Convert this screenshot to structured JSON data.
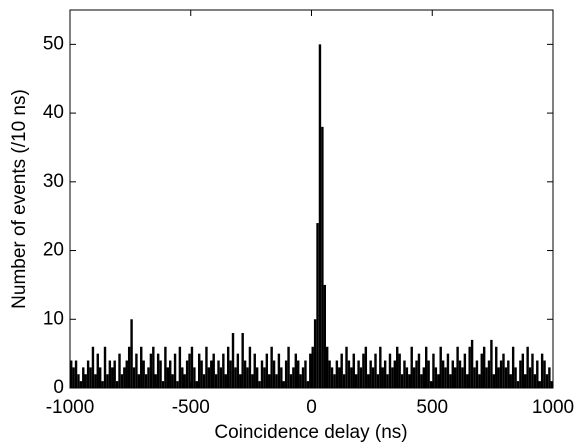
{
  "chart_data": {
    "type": "histogram",
    "xlabel": "Coincidence delay (ns)",
    "ylabel": "Number of events (/10 ns)",
    "bins": [
      -1000,
      -990,
      -980,
      -970,
      -960,
      -950,
      -940,
      -930,
      -920,
      -910,
      -900,
      -890,
      -880,
      -870,
      -860,
      -850,
      -840,
      -830,
      -820,
      -810,
      -800,
      -790,
      -780,
      -770,
      -760,
      -750,
      -740,
      -730,
      -720,
      -710,
      -700,
      -690,
      -680,
      -670,
      -660,
      -650,
      -640,
      -630,
      -620,
      -610,
      -600,
      -590,
      -580,
      -570,
      -560,
      -550,
      -540,
      -530,
      -520,
      -510,
      -500,
      -490,
      -480,
      -470,
      -460,
      -450,
      -440,
      -430,
      -420,
      -410,
      -400,
      -390,
      -380,
      -370,
      -360,
      -350,
      -340,
      -330,
      -320,
      -310,
      -300,
      -290,
      -280,
      -270,
      -260,
      -250,
      -240,
      -230,
      -220,
      -210,
      -200,
      -190,
      -180,
      -170,
      -160,
      -150,
      -140,
      -130,
      -120,
      -110,
      -100,
      -90,
      -80,
      -70,
      -60,
      -50,
      -40,
      -30,
      -20,
      -10,
      0,
      10,
      20,
      30,
      40,
      50,
      60,
      70,
      80,
      90,
      100,
      110,
      120,
      130,
      140,
      150,
      160,
      170,
      180,
      190,
      200,
      210,
      220,
      230,
      240,
      250,
      260,
      270,
      280,
      290,
      300,
      310,
      320,
      330,
      340,
      350,
      360,
      370,
      380,
      390,
      400,
      410,
      420,
      430,
      440,
      450,
      460,
      470,
      480,
      490,
      500,
      510,
      520,
      530,
      540,
      550,
      560,
      570,
      580,
      590,
      600,
      610,
      620,
      630,
      640,
      650,
      660,
      670,
      680,
      690,
      700,
      710,
      720,
      730,
      740,
      750,
      760,
      770,
      780,
      790,
      800,
      810,
      820,
      830,
      840,
      850,
      860,
      870,
      880,
      890,
      900,
      910,
      920,
      930,
      940,
      950,
      960,
      970,
      980,
      990,
      1000
    ],
    "values": [
      4,
      3,
      4,
      2,
      1,
      3,
      2,
      4,
      3,
      6,
      2,
      5,
      3,
      1,
      6,
      2,
      4,
      3,
      4,
      1,
      5,
      2,
      3,
      4,
      6,
      10,
      3,
      5,
      2,
      6,
      4,
      2,
      3,
      5,
      6,
      2,
      5,
      4,
      1,
      6,
      3,
      4,
      2,
      5,
      1,
      6,
      3,
      2,
      4,
      5,
      6,
      3,
      1,
      5,
      4,
      2,
      6,
      3,
      4,
      5,
      2,
      4,
      3,
      5,
      2,
      6,
      4,
      8,
      3,
      5,
      2,
      8,
      4,
      3,
      6,
      2,
      5,
      3,
      1,
      4,
      3,
      5,
      2,
      6,
      4,
      2,
      5,
      3,
      1,
      4,
      6,
      2,
      3,
      5,
      4,
      2,
      3,
      4,
      1,
      5,
      6,
      10,
      24,
      50,
      38,
      15,
      6,
      4,
      3,
      2,
      4,
      3,
      5,
      2,
      6,
      4,
      3,
      5,
      2,
      4,
      3,
      5,
      6,
      2,
      4,
      3,
      5,
      2,
      6,
      3,
      4,
      2,
      5,
      3,
      4,
      6,
      5,
      2,
      4,
      3,
      2,
      6,
      3,
      4,
      5,
      2,
      3,
      6,
      4,
      1,
      5,
      3,
      2,
      6,
      4,
      3,
      5,
      2,
      4,
      3,
      6,
      4,
      3,
      5,
      2,
      6,
      7,
      3,
      4,
      2,
      5,
      6,
      3,
      4,
      7,
      2,
      6,
      3,
      4,
      5,
      3,
      4,
      2,
      6,
      3,
      1,
      4,
      5,
      2,
      6,
      3,
      5,
      2,
      4,
      1,
      5,
      4,
      2,
      3,
      1
    ],
    "color": "#000000",
    "xlim": [
      -1000,
      1000
    ],
    "xticks": [
      -1000,
      -500,
      0,
      500,
      1000
    ],
    "ylim": [
      0,
      55
    ],
    "yticks": [
      0,
      10,
      20,
      30,
      40,
      50
    ],
    "grid": false
  }
}
